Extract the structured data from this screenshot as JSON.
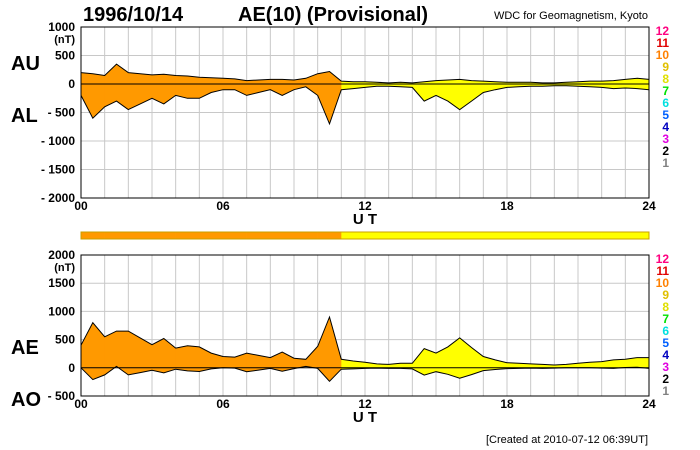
{
  "header": {
    "date": "1996/10/14",
    "title": "AE(10) (Provisional)",
    "source": "WDC for Geomagnetism, Kyoto",
    "footer": "[Created at 2010-07-12 06:39UT]"
  },
  "colors": {
    "activity_scale": [
      "#c0c0c0",
      "#808080",
      "#000000",
      "#e000e0",
      "#0000c0",
      "#0060ff",
      "#00e0e0",
      "#00e000",
      "#e0e000",
      "#e0c000",
      "#ff8000",
      "#e00000",
      "#ff0080"
    ],
    "hour_band_orange": "#ff9900",
    "hour_band_yellow": "#ffff00"
  },
  "scale_labels": [
    "12",
    "11",
    "10",
    "9",
    "8",
    "7",
    "6",
    "5",
    "4",
    "3",
    "2",
    "1"
  ],
  "chart_data": [
    {
      "type": "area",
      "title": "AU / AL",
      "series_labels": {
        "upper": "AU",
        "lower": "AL"
      },
      "units": "(nT)",
      "xlabel": "U T",
      "xlim": [
        0,
        24
      ],
      "x_ticks": [
        "00",
        "06",
        "12",
        "18",
        "24"
      ],
      "ylim": [
        -2000,
        1000
      ],
      "y_ticks": [
        "1000",
        "500",
        "0",
        "- 500",
        "- 1000",
        "- 1500",
        "- 2000"
      ],
      "x": [
        0,
        0.5,
        1,
        1.5,
        2,
        2.5,
        3,
        3.5,
        4,
        4.5,
        5,
        5.5,
        6,
        6.5,
        7,
        7.5,
        8,
        8.5,
        9,
        9.5,
        10,
        10.5,
        11,
        11.5,
        12,
        12.5,
        13,
        13.5,
        14,
        14.5,
        15,
        15.5,
        16,
        16.5,
        17,
        17.5,
        18,
        18.5,
        19,
        19.5,
        20,
        20.5,
        21,
        21.5,
        22,
        22.5,
        23,
        23.5,
        24
      ],
      "AU": [
        200,
        180,
        150,
        350,
        200,
        180,
        160,
        170,
        150,
        140,
        120,
        110,
        100,
        90,
        60,
        70,
        80,
        80,
        70,
        100,
        180,
        220,
        50,
        40,
        40,
        30,
        20,
        30,
        20,
        40,
        60,
        70,
        80,
        60,
        50,
        40,
        30,
        30,
        30,
        20,
        20,
        30,
        40,
        50,
        50,
        60,
        80,
        100,
        80
      ],
      "AL": [
        -200,
        -600,
        -400,
        -300,
        -450,
        -350,
        -250,
        -350,
        -200,
        -250,
        -250,
        -150,
        -100,
        -100,
        -200,
        -150,
        -100,
        -200,
        -100,
        -50,
        -200,
        -700,
        -100,
        -80,
        -60,
        -40,
        -40,
        -50,
        -60,
        -300,
        -200,
        -300,
        -450,
        -300,
        -150,
        -100,
        -60,
        -50,
        -40,
        -40,
        -30,
        -30,
        -40,
        -50,
        -60,
        -80,
        -70,
        -80,
        -100
      ],
      "hour_activity": [
        10,
        10,
        10,
        10,
        10,
        10,
        10,
        10,
        10,
        10,
        10,
        9,
        9,
        9,
        9,
        9,
        9,
        9,
        9,
        9,
        9,
        9,
        9,
        9
      ]
    },
    {
      "type": "area",
      "title": "AE / AO",
      "series_labels": {
        "upper": "AE",
        "lower": "AO"
      },
      "units": "(nT)",
      "xlabel": "U T",
      "xlim": [
        0,
        24
      ],
      "x_ticks": [
        "00",
        "06",
        "12",
        "18",
        "24"
      ],
      "ylim": [
        -500,
        2000
      ],
      "y_ticks": [
        "2000",
        "1500",
        "1000",
        "500",
        "0",
        "- 500"
      ],
      "x": [
        0,
        0.5,
        1,
        1.5,
        2,
        2.5,
        3,
        3.5,
        4,
        4.5,
        5,
        5.5,
        6,
        6.5,
        7,
        7.5,
        8,
        8.5,
        9,
        9.5,
        10,
        10.5,
        11,
        11.5,
        12,
        12.5,
        13,
        13.5,
        14,
        14.5,
        15,
        15.5,
        16,
        16.5,
        17,
        17.5,
        18,
        18.5,
        19,
        19.5,
        20,
        20.5,
        21,
        21.5,
        22,
        22.5,
        23,
        23.5,
        24
      ],
      "AE": [
        400,
        800,
        550,
        650,
        650,
        530,
        410,
        520,
        350,
        390,
        370,
        260,
        200,
        190,
        260,
        220,
        180,
        280,
        170,
        150,
        380,
        900,
        150,
        120,
        100,
        70,
        60,
        80,
        80,
        340,
        260,
        370,
        530,
        360,
        200,
        140,
        90,
        80,
        70,
        60,
        50,
        60,
        80,
        100,
        110,
        140,
        150,
        180,
        180
      ],
      "AO": [
        0,
        -210,
        -125,
        25,
        -125,
        -85,
        -45,
        -90,
        -25,
        -55,
        -65,
        -20,
        0,
        -5,
        -70,
        -40,
        -10,
        -60,
        -15,
        25,
        -10,
        -240,
        -25,
        -20,
        -10,
        -5,
        -10,
        -10,
        -20,
        -130,
        -70,
        -115,
        -185,
        -120,
        -50,
        -30,
        -15,
        -10,
        -5,
        -10,
        -5,
        0,
        0,
        0,
        -5,
        -10,
        5,
        10,
        -10
      ]
    }
  ]
}
